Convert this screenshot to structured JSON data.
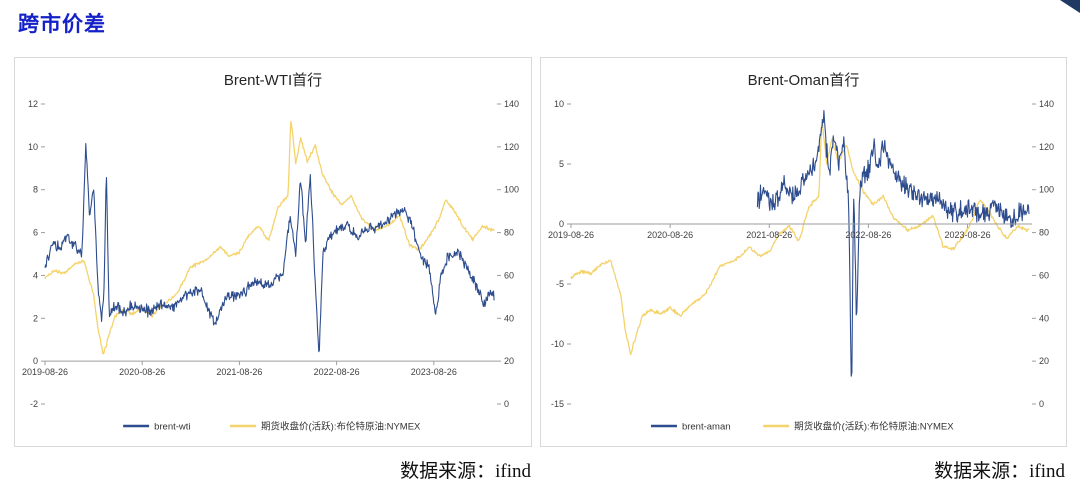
{
  "page": {
    "header": "跨市价差",
    "corner_color": "#1f3864"
  },
  "sources": {
    "left": "数据来源：ifind",
    "right": "数据来源：ifind"
  },
  "colors": {
    "blue_line": "#2e4d8e",
    "yellow_line": "#f4d36d",
    "header_blue": "#1420c8",
    "axis_gray": "#9e9e9e",
    "label_gray": "#404040"
  },
  "chart_data": [
    {
      "type": "line",
      "title": "Brent-WTI首行",
      "xlim": [
        0,
        4.65
      ],
      "x_ticks": [
        0,
        1,
        2,
        3,
        4
      ],
      "x_tick_labels": [
        "2019-08-26",
        "2020-08-26",
        "2021-08-26",
        "2022-08-26",
        "2023-08-26"
      ],
      "left_axis": {
        "lim": [
          -2,
          12
        ],
        "ticks": [
          -2,
          0,
          2,
          4,
          6,
          8,
          10,
          12
        ]
      },
      "right_axis": {
        "lim": [
          0,
          140
        ],
        "ticks": [
          0,
          20,
          40,
          60,
          80,
          100,
          120,
          140
        ]
      },
      "axis_cross": 0,
      "legend_position": "bottom",
      "series": [
        {
          "name": "brent-wti",
          "axis": "left",
          "color": "#2e4d8e",
          "noise": 0.32,
          "seed": 7,
          "x": [
            0,
            0.08,
            0.15,
            0.22,
            0.3,
            0.38,
            0.42,
            0.46,
            0.5,
            0.54,
            0.58,
            0.61,
            0.63,
            0.66,
            0.72,
            0.8,
            0.9,
            1.0,
            1.1,
            1.2,
            1.3,
            1.45,
            1.6,
            1.75,
            1.85,
            1.95,
            2.05,
            2.15,
            2.3,
            2.45,
            2.52,
            2.58,
            2.63,
            2.68,
            2.73,
            2.78,
            2.82,
            2.86,
            2.92,
            3.0,
            3.1,
            3.2,
            3.35,
            3.5,
            3.6,
            3.7,
            3.78,
            3.85,
            3.95,
            4.02,
            4.08,
            4.15,
            4.25,
            4.35,
            4.45,
            4.52,
            4.58,
            4.62
          ],
          "values": [
            4.3,
            5.6,
            5.2,
            5.9,
            5.4,
            5.0,
            10.1,
            6.8,
            8.3,
            3.8,
            1.9,
            3.6,
            8.9,
            2.2,
            2.6,
            2.3,
            2.6,
            2.4,
            2.3,
            2.7,
            2.5,
            3.1,
            3.3,
            1.7,
            2.9,
            3.1,
            3.2,
            3.8,
            3.6,
            4.1,
            6.8,
            5.0,
            8.6,
            5.5,
            8.8,
            3.5,
            0.3,
            5.0,
            5.8,
            6.1,
            6.4,
            5.8,
            6.2,
            6.4,
            6.9,
            7.1,
            6.3,
            4.9,
            4.4,
            2.1,
            4.1,
            4.9,
            5.1,
            4.3,
            3.4,
            2.6,
            3.3,
            3.0
          ]
        },
        {
          "name": "期货收盘价(活跃):布伦特原油:NYMEX",
          "axis": "right",
          "color": "#f4d36d",
          "noise": 1.0,
          "seed": 3,
          "x": [
            0,
            0.1,
            0.2,
            0.3,
            0.4,
            0.45,
            0.5,
            0.55,
            0.6,
            0.65,
            0.72,
            0.8,
            0.9,
            1.0,
            1.1,
            1.2,
            1.35,
            1.5,
            1.65,
            1.8,
            1.9,
            2.0,
            2.1,
            2.2,
            2.3,
            2.4,
            2.5,
            2.53,
            2.58,
            2.63,
            2.7,
            2.78,
            2.85,
            2.95,
            3.05,
            3.15,
            3.25,
            3.4,
            3.55,
            3.65,
            3.75,
            3.85,
            3.95,
            4.05,
            4.12,
            4.2,
            4.3,
            4.4,
            4.5,
            4.62
          ],
          "values": [
            59,
            62,
            61,
            65,
            67,
            59,
            51,
            34,
            23,
            31,
            41,
            44,
            42,
            45,
            41,
            46,
            51,
            64,
            67,
            73,
            69,
            71,
            79,
            83,
            76,
            92,
            97,
            133,
            112,
            124,
            113,
            121,
            108,
            99,
            93,
            97,
            87,
            81,
            84,
            88,
            74,
            72,
            78,
            86,
            95,
            91,
            83,
            77,
            83,
            81
          ]
        }
      ]
    },
    {
      "type": "line",
      "title": "Brent-Oman首行",
      "xlim": [
        0,
        4.65
      ],
      "x_ticks": [
        0,
        1,
        2,
        3,
        4
      ],
      "x_tick_labels": [
        "2019-08-26",
        "2020-08-26",
        "2021-08-26",
        "2022-08-26",
        "2023-08-26"
      ],
      "left_axis": {
        "lim": [
          -15,
          10
        ],
        "ticks": [
          -15,
          -10,
          -5,
          0,
          5,
          10
        ]
      },
      "right_axis": {
        "lim": [
          0,
          140
        ],
        "ticks": [
          0,
          20,
          40,
          60,
          80,
          100,
          120,
          140
        ]
      },
      "axis_cross": 0,
      "legend_position": "bottom",
      "series": [
        {
          "name": "brent-aman",
          "axis": "left",
          "color": "#2e4d8e",
          "noise": 1.1,
          "seed": 11,
          "x": [
            1.88,
            1.95,
            2.05,
            2.15,
            2.25,
            2.35,
            2.45,
            2.5,
            2.55,
            2.6,
            2.65,
            2.7,
            2.75,
            2.8,
            2.83,
            2.85,
            2.88,
            2.91,
            2.95,
            3.0,
            3.05,
            3.1,
            3.15,
            3.25,
            3.35,
            3.45,
            3.55,
            3.65,
            3.75,
            3.85,
            3.95,
            4.05,
            4.15,
            4.25,
            4.35,
            4.45,
            4.55,
            4.62
          ],
          "values": [
            2.0,
            2.6,
            1.6,
            3.1,
            2.2,
            3.8,
            4.6,
            6.5,
            9.2,
            4.2,
            7.4,
            5.2,
            6.6,
            2.5,
            -14.8,
            3.2,
            -8.5,
            2.0,
            4.2,
            4.6,
            6.4,
            4.8,
            6.7,
            4.4,
            3.2,
            2.6,
            2.1,
            2.3,
            1.6,
            1.1,
            0.9,
            1.3,
            0.6,
            1.6,
            0.9,
            0.4,
            1.1,
            1.3
          ]
        },
        {
          "name": "期货收盘价(活跃):布伦特原油:NYMEX",
          "axis": "right",
          "color": "#f4d36d",
          "noise": 1.0,
          "seed": 5,
          "x": [
            0,
            0.1,
            0.2,
            0.3,
            0.4,
            0.45,
            0.5,
            0.55,
            0.6,
            0.65,
            0.72,
            0.8,
            0.9,
            1.0,
            1.1,
            1.2,
            1.35,
            1.5,
            1.65,
            1.8,
            1.9,
            2.0,
            2.1,
            2.2,
            2.3,
            2.4,
            2.5,
            2.53,
            2.58,
            2.63,
            2.7,
            2.78,
            2.85,
            2.95,
            3.05,
            3.15,
            3.25,
            3.4,
            3.55,
            3.65,
            3.75,
            3.85,
            3.95,
            4.05,
            4.12,
            4.2,
            4.3,
            4.4,
            4.5,
            4.62
          ],
          "values": [
            59,
            62,
            61,
            65,
            67,
            59,
            51,
            34,
            23,
            31,
            41,
            44,
            42,
            45,
            41,
            46,
            51,
            64,
            67,
            73,
            69,
            71,
            79,
            83,
            76,
            92,
            97,
            133,
            112,
            124,
            113,
            121,
            108,
            99,
            93,
            97,
            87,
            81,
            84,
            88,
            74,
            72,
            78,
            86,
            95,
            91,
            83,
            77,
            83,
            81
          ]
        }
      ]
    }
  ]
}
